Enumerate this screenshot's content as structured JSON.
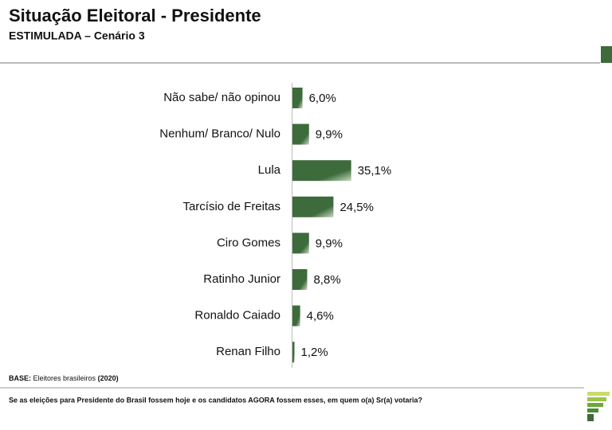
{
  "chart_data": {
    "type": "bar",
    "orientation": "horizontal",
    "title": "Situação Eleitoral - Presidente",
    "subtitle": "ESTIMULADA – Cenário 3",
    "categories": [
      "Não sabe/ não opinou",
      "Nenhum/ Branco/ Nulo",
      "Lula",
      "Tarcísio de Freitas",
      "Ciro Gomes",
      "Ratinho Junior",
      "Ronaldo Caiado",
      "Renan Filho"
    ],
    "values": [
      6.0,
      9.9,
      35.1,
      24.5,
      9.9,
      8.8,
      4.6,
      1.2
    ],
    "value_labels": [
      "6,0%",
      "9,9%",
      "35,1%",
      "24,5%",
      "9,9%",
      "8,8%",
      "4,6%",
      "1,2%"
    ],
    "color": "#3e6b3c"
  },
  "base": {
    "label": "BASE:",
    "text": "Eleitores brasileiros",
    "year": "(2020)"
  },
  "question": "Se as eleições para Presidente do Brasil fossem hoje e os candidatos AGORA fossem esses, em quem o(a) Sr(a) votaria?"
}
